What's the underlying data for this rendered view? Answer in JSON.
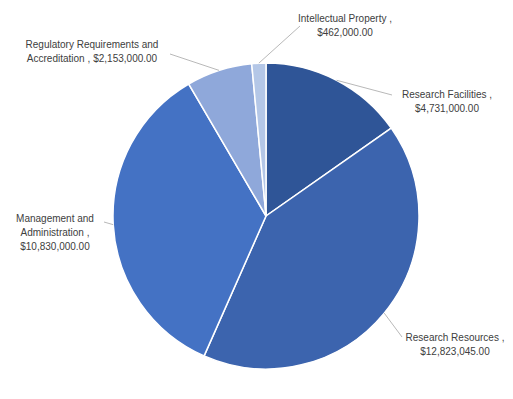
{
  "chart_data": {
    "type": "pie",
    "categories": [
      "Research Facilities ,",
      "Research Resources ,",
      "Management and Administration ,",
      "Regulatory Requirements and Accreditation ,",
      "Intellectual Property ,"
    ],
    "values": [
      4731000,
      12823045,
      10830000,
      2153000,
      462000
    ],
    "value_labels": [
      "$4,731,000.00",
      "$12,823,045.00",
      "$10,830,000.00",
      "$2,153,000.00",
      "$462,000.00"
    ],
    "colors": [
      "#2f5597",
      "#3c64ae",
      "#4472c4",
      "#8fa8da",
      "#b4c7e7"
    ],
    "data_labels": true
  }
}
